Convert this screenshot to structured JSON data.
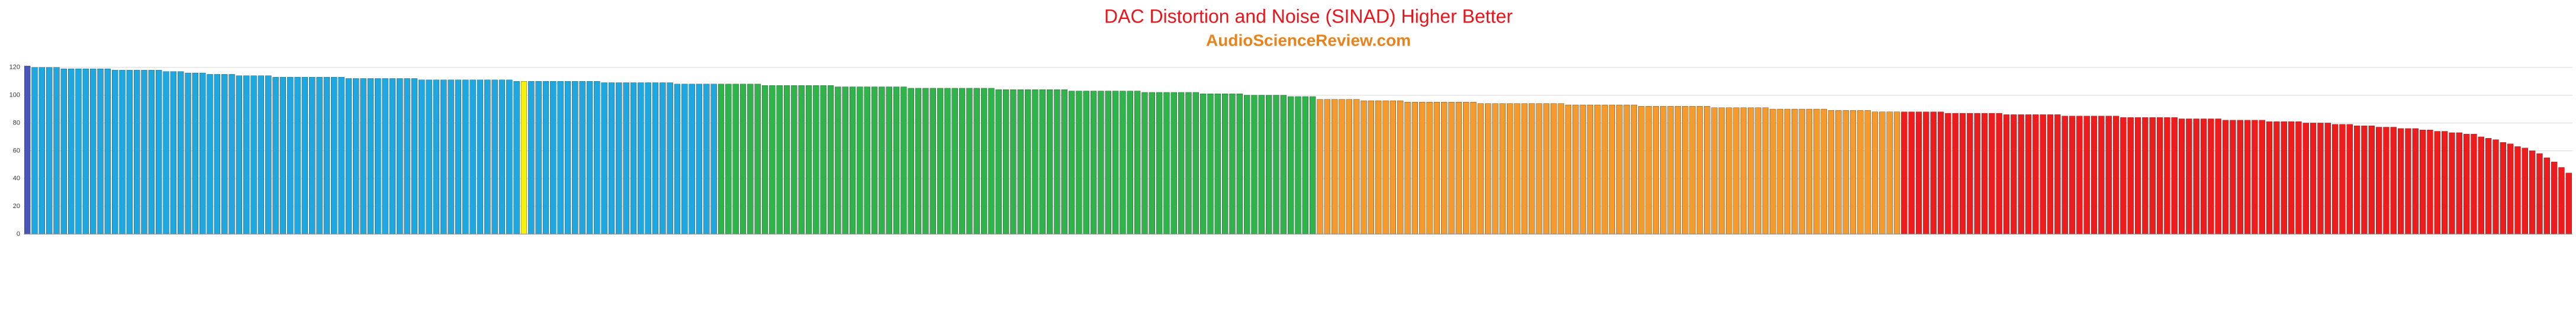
{
  "chart_data": {
    "type": "bar",
    "title": "DAC Distortion and Noise (SINAD) Higher Better",
    "subtitle": "AudioScienceReview.com",
    "ylim": [
      0,
      125
    ],
    "yticks": [
      0,
      20,
      40,
      60,
      80,
      100,
      120
    ],
    "grid": true,
    "segments": [
      {
        "color": "#4a56b5",
        "values": [
          121
        ]
      },
      {
        "color": "#1fa8e0",
        "values": [
          120,
          120,
          120,
          120,
          119,
          119,
          119,
          119,
          119,
          119,
          119,
          118,
          118,
          118,
          118,
          118,
          118,
          118,
          117,
          117,
          117,
          116,
          116,
          116,
          115,
          115,
          115,
          115,
          114,
          114,
          114,
          114,
          114,
          113,
          113,
          113,
          113,
          113,
          113,
          113,
          113,
          113,
          113,
          112,
          112,
          112,
          112,
          112,
          112,
          112,
          112,
          112,
          112,
          111,
          111,
          111,
          111,
          111,
          111,
          111,
          111,
          111,
          111,
          111,
          111,
          111,
          110
        ]
      },
      {
        "color": "#f2f20e",
        "values": [
          110
        ]
      },
      {
        "color": "#1fa8e0",
        "values": [
          110,
          110,
          110,
          110,
          110,
          110,
          110,
          110,
          110,
          110,
          109,
          109,
          109,
          109,
          109,
          109,
          109,
          109,
          109,
          109,
          108,
          108,
          108,
          108,
          108,
          108
        ]
      },
      {
        "color": "#2fb34a",
        "values": [
          108,
          108,
          108,
          108,
          108,
          108,
          107,
          107,
          107,
          107,
          107,
          107,
          107,
          107,
          107,
          107,
          106,
          106,
          106,
          106,
          106,
          106,
          106,
          106,
          106,
          106,
          105,
          105,
          105,
          105,
          105,
          105,
          105,
          105,
          105,
          105,
          105,
          105,
          104,
          104,
          104,
          104,
          104,
          104,
          104,
          104,
          104,
          104,
          103,
          103,
          103,
          103,
          103,
          103,
          103,
          103,
          103,
          103,
          102,
          102,
          102,
          102,
          102,
          102,
          102,
          102,
          101,
          101,
          101,
          101,
          101,
          101,
          100,
          100,
          100,
          100,
          100,
          100,
          99,
          99,
          99,
          99
        ]
      },
      {
        "color": "#f59a2c",
        "values": [
          97,
          97,
          97,
          97,
          97,
          97,
          96,
          96,
          96,
          96,
          96,
          96,
          95,
          95,
          95,
          95,
          95,
          95,
          95,
          95,
          95,
          95,
          94,
          94,
          94,
          94,
          94,
          94,
          94,
          94,
          94,
          94,
          94,
          94,
          93,
          93,
          93,
          93,
          93,
          93,
          93,
          93,
          93,
          93,
          92,
          92,
          92,
          92,
          92,
          92,
          92,
          92,
          92,
          92,
          91,
          91,
          91,
          91,
          91,
          91,
          91,
          91,
          90,
          90,
          90,
          90,
          90,
          90,
          90,
          90,
          89,
          89,
          89,
          89,
          89,
          89,
          88,
          88,
          88,
          88
        ]
      },
      {
        "color": "#ee1c1c",
        "values": [
          88,
          88,
          88,
          88,
          88,
          88,
          87,
          87,
          87,
          87,
          87,
          87,
          87,
          87,
          86,
          86,
          86,
          86,
          86,
          86,
          86,
          86,
          85,
          85,
          85,
          85,
          85,
          85,
          85,
          85,
          84,
          84,
          84,
          84,
          84,
          84,
          84,
          84,
          83,
          83,
          83,
          83,
          83,
          83,
          82,
          82,
          82,
          82,
          82,
          82,
          81,
          81,
          81,
          81,
          81,
          80,
          80,
          80,
          80,
          79,
          79,
          79,
          78,
          78,
          78,
          77,
          77,
          77,
          76,
          76,
          76,
          75,
          75,
          74,
          74,
          73,
          73,
          72,
          72,
          70,
          69,
          68,
          66,
          65,
          63,
          62,
          60,
          58,
          55,
          52,
          48,
          44
        ]
      }
    ]
  }
}
